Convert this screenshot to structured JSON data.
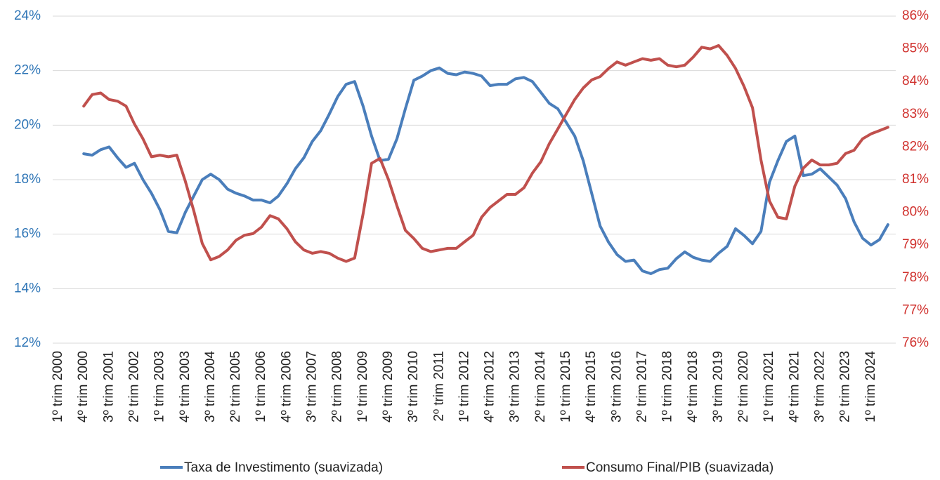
{
  "chart_data": {
    "type": "line",
    "categories": [
      "1º trim 2000",
      null,
      null,
      "4º trim 2000",
      null,
      null,
      "3º trim 2001",
      null,
      null,
      "2º trim 2002",
      null,
      null,
      "1º trim 2003",
      null,
      null,
      "4º trim 2003",
      null,
      null,
      "3º trim 2004",
      null,
      null,
      "2º trim 2005",
      null,
      null,
      "1º trim 2006",
      null,
      null,
      "4º trim 2006",
      null,
      null,
      "3º trim 2007",
      null,
      null,
      "2º trim 2008",
      null,
      null,
      "1º trim 2009",
      null,
      null,
      "4º trim 2009",
      null,
      null,
      "3º trim 2010",
      null,
      null,
      "2º trim 2011",
      null,
      null,
      "1º trim 2012",
      null,
      null,
      "4º trim 2012",
      null,
      null,
      "3º trim 2013",
      null,
      null,
      "2º trim 2014",
      null,
      null,
      "1º trim 2015",
      null,
      null,
      "4º trim 2015",
      null,
      null,
      "3º trim 2016",
      null,
      null,
      "2º trim 2017",
      null,
      null,
      "1º trim 2018",
      null,
      null,
      "4º trim 2018",
      null,
      null,
      "3º trim 2019",
      null,
      null,
      "2º trim 2020",
      null,
      null,
      "1º trim 2021",
      null,
      null,
      "4º trim 2021",
      null,
      null,
      "3º trim 2022",
      null,
      null,
      "2º trim 2023",
      null,
      null,
      "1º trim 2024",
      null,
      null
    ],
    "series": [
      {
        "name": "Taxa de Investimento (suavizada)",
        "color": "#4a7ebb",
        "axis": "y",
        "values": [
          null,
          null,
          null,
          18.95,
          18.9,
          19.1,
          19.2,
          18.8,
          18.45,
          18.6,
          18.0,
          17.5,
          16.9,
          16.1,
          16.05,
          16.8,
          17.4,
          18.0,
          18.2,
          18.0,
          17.65,
          17.5,
          17.4,
          17.25,
          17.25,
          17.15,
          17.4,
          17.85,
          18.4,
          18.8,
          19.4,
          19.8,
          20.4,
          21.05,
          21.5,
          21.6,
          20.7,
          19.6,
          18.7,
          18.75,
          19.5,
          20.6,
          21.65,
          21.8,
          22.0,
          22.1,
          21.9,
          21.85,
          21.95,
          21.9,
          21.8,
          21.45,
          21.5,
          21.5,
          21.7,
          21.75,
          21.6,
          21.2,
          20.8,
          20.6,
          20.1,
          19.6,
          18.7,
          17.5,
          16.3,
          15.7,
          15.25,
          15.0,
          15.05,
          14.65,
          14.55,
          14.7,
          14.75,
          15.1,
          15.35,
          15.15,
          15.05,
          15.0,
          15.3,
          15.55,
          16.2,
          15.95,
          15.65,
          16.1,
          17.9,
          18.7,
          19.4,
          19.6,
          18.15,
          18.2,
          18.4,
          18.1,
          17.8,
          17.3,
          16.45,
          15.85,
          15.6,
          15.8,
          16.35
        ]
      },
      {
        "name": "Consumo Final/PIB (suavizada)",
        "color": "#c0504d",
        "axis": "y2",
        "values": [
          null,
          null,
          null,
          83.25,
          83.6,
          83.65,
          83.45,
          83.4,
          83.25,
          82.7,
          82.25,
          81.7,
          81.75,
          81.7,
          81.75,
          80.95,
          80.05,
          79.05,
          78.55,
          78.65,
          78.85,
          79.15,
          79.3,
          79.35,
          79.55,
          79.9,
          79.8,
          79.5,
          79.1,
          78.85,
          78.75,
          78.8,
          78.75,
          78.6,
          78.5,
          78.6,
          79.95,
          81.5,
          81.65,
          81.0,
          80.2,
          79.45,
          79.2,
          78.9,
          78.8,
          78.85,
          78.9,
          78.9,
          79.1,
          79.3,
          79.85,
          80.15,
          80.35,
          80.55,
          80.55,
          80.75,
          81.2,
          81.55,
          82.1,
          82.55,
          83.0,
          83.45,
          83.8,
          84.05,
          84.15,
          84.4,
          84.6,
          84.5,
          84.6,
          84.7,
          84.65,
          84.7,
          84.5,
          84.45,
          84.5,
          84.75,
          85.05,
          85.0,
          85.1,
          84.8,
          84.4,
          83.85,
          83.2,
          81.6,
          80.35,
          79.85,
          79.8,
          80.8,
          81.35,
          81.6,
          81.45,
          81.45,
          81.5,
          81.8,
          81.9,
          82.25,
          82.4,
          82.5,
          82.6
        ]
      }
    ],
    "ylim": [
      12,
      24
    ],
    "yticks": [
      {
        "value": 12,
        "label": "12%"
      },
      {
        "value": 14,
        "label": "14%"
      },
      {
        "value": 16,
        "label": "16%"
      },
      {
        "value": 18,
        "label": "18%"
      },
      {
        "value": 20,
        "label": "20%"
      },
      {
        "value": 22,
        "label": "22%"
      },
      {
        "value": 24,
        "label": "24%"
      }
    ],
    "y2lim": [
      76,
      86
    ],
    "y2ticks": [
      {
        "value": 76,
        "label": "76%"
      },
      {
        "value": 77,
        "label": "77%"
      },
      {
        "value": 78,
        "label": "78%"
      },
      {
        "value": 79,
        "label": "79%"
      },
      {
        "value": 80,
        "label": "80%"
      },
      {
        "value": 81,
        "label": "81%"
      },
      {
        "value": 82,
        "label": "82%"
      },
      {
        "value": 83,
        "label": "83%"
      },
      {
        "value": 84,
        "label": "84%"
      },
      {
        "value": 85,
        "label": "85%"
      },
      {
        "value": 86,
        "label": "86%"
      }
    ],
    "grid": true,
    "legend": "bottom"
  }
}
